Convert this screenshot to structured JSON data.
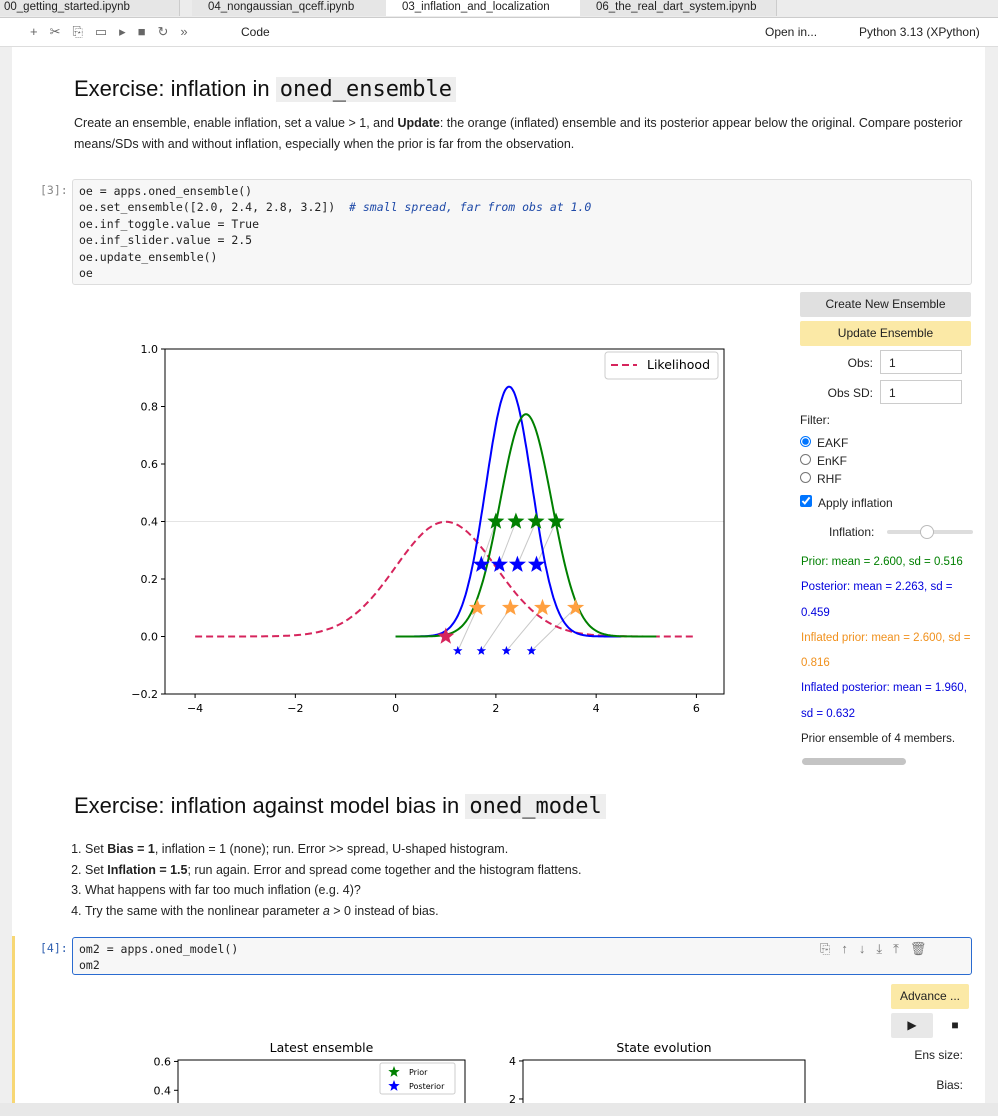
{
  "tabs": [
    "00_getting_started.ipynb",
    "04_nongaussian_qceff.ipynb",
    "03_inflation_and_localization",
    "06_the_real_dart_system.ipynb"
  ],
  "toolbar": {
    "cell_type": "Code",
    "open_in": "Open in...",
    "kernel": "Python 3.13 (XPython)"
  },
  "section1": {
    "heading": "Exercise: inflation in ",
    "heading_code": "oned_ensemble",
    "paragraph": [
      "Create an ensemble, enable inflation, set a value > 1, and ",
      "Update",
      ": the orange (inflated) ensemble and its posterior appear below the original. Compare posterior means/SDs with and without inflation, especially when the prior is far from the observation."
    ]
  },
  "cell3": {
    "prompt": "[3]:",
    "lines": [
      "oe = apps.oned_ensemble()",
      "oe.set_ensemble([2.0, 2.4, 2.8, 3.2])",
      "oe.inf_toggle.value = True",
      "oe.inf_slider.value = 2.5",
      "oe.update_ensemble()",
      "oe"
    ],
    "comment": "# small spread, far from obs at 1.0"
  },
  "plot1": {
    "type": "line",
    "xlim": [
      -4.6,
      6.55
    ],
    "ylim": [
      -0.2,
      1.0
    ],
    "xticks": [
      {
        "value": -4,
        "label": "−4"
      },
      {
        "value": -2,
        "label": "−2"
      },
      0,
      2,
      4,
      6
    ],
    "yticks": [
      {
        "value": -0.2,
        "label": "−0.2"
      },
      {
        "value": 0,
        "label": "0.0"
      },
      {
        "value": 0.2,
        "label": "0.2"
      },
      {
        "value": 0.4,
        "label": "0.4"
      },
      {
        "value": 0.6,
        "label": "0.6"
      },
      {
        "value": 0.8,
        "label": "0.8"
      },
      {
        "value": 1,
        "label": "1.0"
      }
    ],
    "hline": 0.4,
    "curves": [
      {
        "name": "Likelihood",
        "color": "#d6245c",
        "mean": 1,
        "sd": 1,
        "x_range": [
          -4,
          6
        ],
        "dashed": true
      },
      {
        "color": "#0000ff",
        "mean": 2.263,
        "sd": 0.459,
        "x_range": [
          0,
          4.5
        ]
      },
      {
        "color": "#008000",
        "mean": 2.6,
        "sd": 0.516,
        "x_range": [
          0,
          5.2
        ]
      }
    ],
    "stars": [
      {
        "color": "#008000",
        "y": 0.4,
        "x": [
          2.0,
          2.4,
          2.8,
          3.2
        ]
      },
      {
        "color": "#0000ff",
        "y": 0.25,
        "x": [
          1.71,
          2.07,
          2.43,
          2.81
        ]
      },
      {
        "color": "#ffa040",
        "y": 0.1,
        "x": [
          1.63,
          2.29,
          2.93,
          3.59
        ]
      },
      {
        "color": "#0000ff",
        "y": -0.05,
        "x": [
          1.24,
          1.71,
          2.21,
          2.71
        ],
        "small": true
      },
      {
        "color": "#d6245c",
        "y": 0,
        "x": [
          1
        ]
      }
    ]
  },
  "widgets": {
    "create": "Create New Ensemble",
    "update": "Update Ensemble",
    "obs_label": "Obs:",
    "obs": "1",
    "obs_sd_label": "Obs SD:",
    "obs_sd": "1",
    "filter": "Filter:",
    "filters": [
      "EAKF",
      "EnKF",
      "RHF"
    ],
    "apply": "Apply inflation",
    "inflation": "Inflation:",
    "stats": [
      "Prior: mean = 2.600, sd = 0.516",
      "Posterior: mean = 2.263, sd = 0.459",
      "Inflated prior: mean = 2.600, sd = 0.816",
      "Inflated posterior: mean = 1.960, sd = 0.632"
    ],
    "members": "Prior ensemble of 4 members."
  },
  "section2": {
    "heading": "Exercise: inflation against model bias in ",
    "heading_code": "oned_model",
    "items": [
      [
        "Set ",
        "Bias = 1",
        ", inflation = 1 (none); run. Error >> spread, U-shaped histogram."
      ],
      [
        "Set ",
        "Inflation = 1.5",
        "; run again. Error and spread come together and the histogram flattens."
      ],
      [
        "What happens with far too much inflation (e.g. 4)?"
      ],
      [
        "Try the same with the nonlinear parameter ",
        "a",
        " > 0 instead of bias."
      ]
    ]
  },
  "cell4": {
    "prompt": "[4]:",
    "lines": [
      "om2 = apps.oned_model()",
      "om2"
    ]
  },
  "output4": {
    "advance": "Advance ...",
    "ens_size": "Ens size:",
    "bias": "Bias:",
    "plot2": {
      "title": "Latest ensemble",
      "ylim": [
        0,
        0.61
      ],
      "yticks": [
        0.4,
        0.6
      ],
      "legend": [
        "Prior",
        "Posterior"
      ]
    },
    "plot3": {
      "title": "State evolution",
      "ylim": [
        -1,
        4.05
      ],
      "yticks": [
        2,
        4
      ]
    }
  }
}
